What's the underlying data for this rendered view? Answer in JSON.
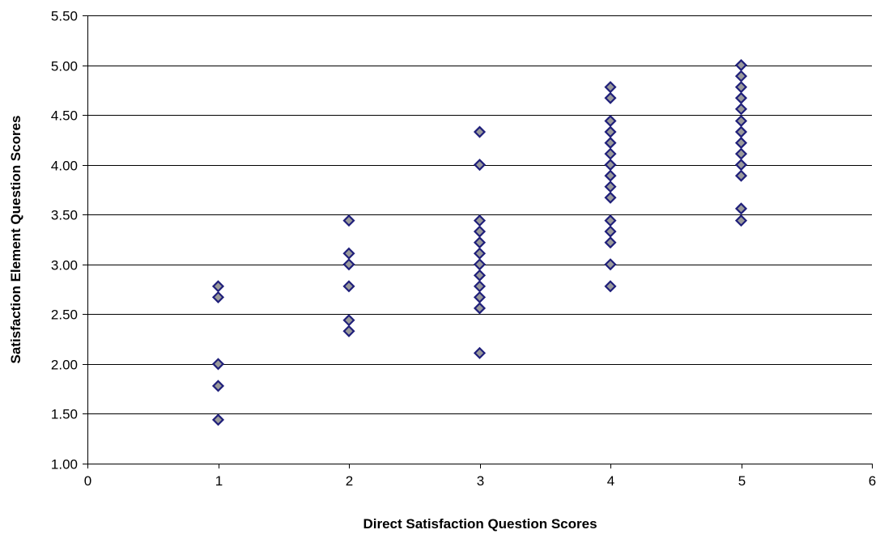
{
  "chart_data": {
    "type": "scatter",
    "title": "",
    "xlabel": "Direct Satisfaction Question Scores",
    "ylabel": "Satisfaction Element Question Scores",
    "xlim": [
      0,
      6
    ],
    "ylim": [
      1.0,
      5.5
    ],
    "x_ticks": [
      "0",
      "1",
      "2",
      "3",
      "4",
      "5",
      "6"
    ],
    "y_ticks": [
      "1.00",
      "1.50",
      "2.00",
      "2.50",
      "3.00",
      "3.50",
      "4.00",
      "4.50",
      "5.00",
      "5.50"
    ],
    "grid": "horizontal",
    "legend": "none",
    "marker": "diamond",
    "colors": {
      "marker_fill": "#9a9a9a",
      "marker_edge": "#1f1f7a",
      "gridline": "#000000",
      "axis": "#000000"
    },
    "points": [
      {
        "x": 1,
        "y": 2.78
      },
      {
        "x": 1,
        "y": 2.67
      },
      {
        "x": 1,
        "y": 2.0
      },
      {
        "x": 1,
        "y": 1.78
      },
      {
        "x": 1,
        "y": 1.44
      },
      {
        "x": 2,
        "y": 3.44
      },
      {
        "x": 2,
        "y": 3.11
      },
      {
        "x": 2,
        "y": 3.0
      },
      {
        "x": 2,
        "y": 2.78
      },
      {
        "x": 2,
        "y": 2.44
      },
      {
        "x": 2,
        "y": 2.33
      },
      {
        "x": 3,
        "y": 4.33
      },
      {
        "x": 3,
        "y": 4.0
      },
      {
        "x": 3,
        "y": 3.44
      },
      {
        "x": 3,
        "y": 3.33
      },
      {
        "x": 3,
        "y": 3.22
      },
      {
        "x": 3,
        "y": 3.11
      },
      {
        "x": 3,
        "y": 3.0
      },
      {
        "x": 3,
        "y": 2.89
      },
      {
        "x": 3,
        "y": 2.78
      },
      {
        "x": 3,
        "y": 2.67
      },
      {
        "x": 3,
        "y": 2.56
      },
      {
        "x": 3,
        "y": 2.11
      },
      {
        "x": 4,
        "y": 4.78
      },
      {
        "x": 4,
        "y": 4.67
      },
      {
        "x": 4,
        "y": 4.44
      },
      {
        "x": 4,
        "y": 4.33
      },
      {
        "x": 4,
        "y": 4.22
      },
      {
        "x": 4,
        "y": 4.11
      },
      {
        "x": 4,
        "y": 4.0
      },
      {
        "x": 4,
        "y": 3.89
      },
      {
        "x": 4,
        "y": 3.78
      },
      {
        "x": 4,
        "y": 3.67
      },
      {
        "x": 4,
        "y": 3.44
      },
      {
        "x": 4,
        "y": 3.33
      },
      {
        "x": 4,
        "y": 3.22
      },
      {
        "x": 4,
        "y": 3.0
      },
      {
        "x": 4,
        "y": 2.78
      },
      {
        "x": 5,
        "y": 5.0
      },
      {
        "x": 5,
        "y": 4.89
      },
      {
        "x": 5,
        "y": 4.78
      },
      {
        "x": 5,
        "y": 4.67
      },
      {
        "x": 5,
        "y": 4.56
      },
      {
        "x": 5,
        "y": 4.44
      },
      {
        "x": 5,
        "y": 4.33
      },
      {
        "x": 5,
        "y": 4.22
      },
      {
        "x": 5,
        "y": 4.11
      },
      {
        "x": 5,
        "y": 4.0
      },
      {
        "x": 5,
        "y": 3.89
      },
      {
        "x": 5,
        "y": 3.56
      },
      {
        "x": 5,
        "y": 3.44
      }
    ]
  }
}
